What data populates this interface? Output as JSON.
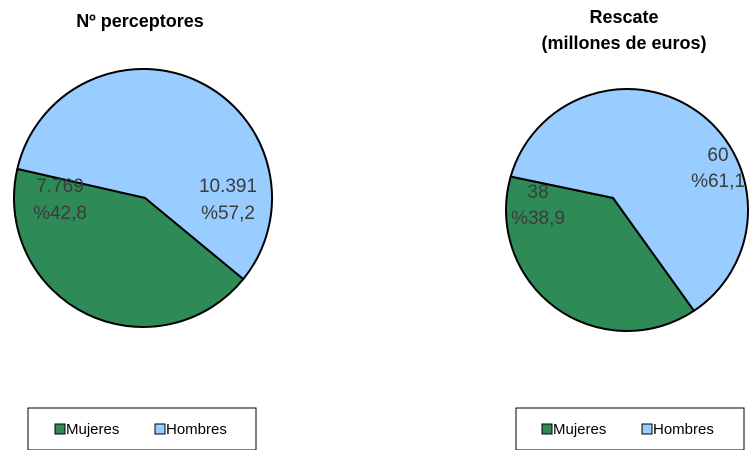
{
  "chart_data": [
    {
      "type": "pie",
      "title": "Nº perceptores",
      "series": [
        {
          "name": "Mujeres",
          "value": 7769,
          "value_label": "7.769",
          "percent_label": "%42,8",
          "color": "#2e8b57"
        },
        {
          "name": "Hombres",
          "value": 10391,
          "value_label": "10.391",
          "percent_label": "%57,2",
          "color": "#99ccff"
        }
      ],
      "legend": "bottom"
    },
    {
      "type": "pie",
      "title": "Rescate",
      "subtitle": "(millones de euros)",
      "series": [
        {
          "name": "Mujeres",
          "value": 38,
          "value_label": "38",
          "percent_label": "%38,9",
          "color": "#2e8b57"
        },
        {
          "name": "Hombres",
          "value": 60,
          "value_label": "60",
          "percent_label": "%61,1",
          "color": "#99ccff"
        }
      ],
      "legend": "bottom"
    }
  ]
}
